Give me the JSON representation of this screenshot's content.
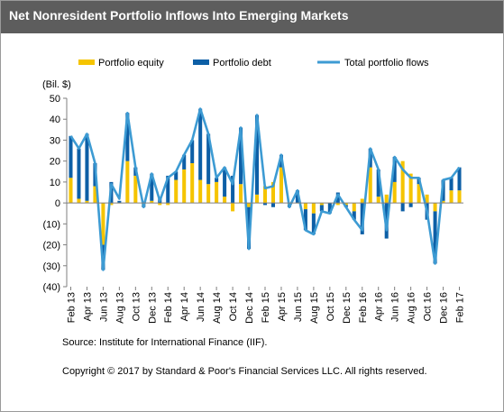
{
  "chart_data": {
    "type": "bar",
    "title": "Net Nonresident Portfolio Inflows Into Emerging Markets",
    "unit_label": "(Bil. $)",
    "ylim": [
      -40,
      50
    ],
    "yticks": [
      "50",
      "40",
      "30",
      "20",
      "10",
      "0",
      "(10)",
      "(20)",
      "(30)",
      "(40)"
    ],
    "ytick_values": [
      50,
      40,
      30,
      20,
      10,
      0,
      -10,
      -20,
      -30,
      -40
    ],
    "categories": [
      "Feb 13",
      "Mar 13",
      "Apr 13",
      "May 13",
      "Jun 13",
      "Jul 13",
      "Aug 13",
      "Sep 13",
      "Oct 13",
      "Nov 13",
      "Dec 13",
      "Jan 14",
      "Feb 14",
      "Mar 14",
      "Apr 14",
      "May 14",
      "Jun 14",
      "Jul 14",
      "Aug 14",
      "Sep 14",
      "Oct 14",
      "Nov 14",
      "Dec 14",
      "Jan 15",
      "Feb 15",
      "Mar 15",
      "Apr 15",
      "May 15",
      "Jun 15",
      "Jul 15",
      "Aug 15",
      "Sep 15",
      "Oct 15",
      "Nov 15",
      "Dec 15",
      "Jan 16",
      "Feb 16",
      "Mar 16",
      "Apr 16",
      "May 16",
      "Jun 16",
      "Jul 16",
      "Aug 16",
      "Sep 16",
      "Oct 16",
      "Nov 16",
      "Dec 16",
      "Jan 17",
      "Feb 17"
    ],
    "tick_labels": [
      "Feb 13",
      "Apr 13",
      "Jun 13",
      "Aug 13",
      "Oct 13",
      "Dec 13",
      "Feb 14",
      "Apr 14",
      "Jun 14",
      "Aug 14",
      "Oct 14",
      "Dec 14",
      "Feb 15",
      "Apr 15",
      "Jun 15",
      "Aug 15",
      "Oct 15",
      "Dec 15",
      "Feb 16",
      "Apr 16",
      "Jun 16",
      "Aug 16",
      "Oct 16",
      "Dec 16",
      "Feb 17"
    ],
    "legend_position": "top",
    "series": [
      {
        "name": "Portfolio equity",
        "kind": "bar",
        "color": "#f5c400",
        "values": [
          12,
          2,
          1,
          8,
          -20,
          -1,
          0,
          20,
          13,
          -1,
          1,
          -1,
          -1,
          11,
          16,
          19,
          11,
          9,
          10,
          3,
          -4,
          9,
          -2,
          4,
          8,
          10,
          17,
          -1,
          0,
          -3,
          -5,
          -1,
          0,
          -1,
          -1,
          -4,
          2,
          17,
          3,
          4,
          10,
          20,
          14,
          9,
          4,
          -4,
          1,
          6,
          6
        ]
      },
      {
        "name": "Portfolio debt",
        "kind": "bar",
        "color": "#0d5fa6",
        "values": [
          20,
          24,
          32,
          11,
          -12,
          10,
          1,
          23,
          4,
          -1,
          13,
          2,
          13,
          4,
          7,
          11,
          34,
          24,
          2,
          14,
          13,
          27,
          -20,
          38,
          -1,
          -2,
          6,
          -1,
          6,
          -10,
          -10,
          -3,
          -5,
          5,
          -1,
          -4,
          -15,
          9,
          13,
          -17,
          12,
          -4,
          -2,
          3,
          -8,
          -25,
          10,
          6,
          11
        ]
      },
      {
        "name": "Total portfolio flows",
        "kind": "line",
        "color": "#3d9bd3",
        "values": [
          32,
          26,
          33,
          19,
          -32,
          9,
          2,
          43,
          17,
          -2,
          14,
          1,
          12,
          15,
          23,
          30,
          45,
          33,
          12,
          17,
          9,
          36,
          -22,
          42,
          7,
          8,
          23,
          -2,
          6,
          -13,
          -15,
          -4,
          -5,
          4,
          -2,
          -8,
          -13,
          26,
          16,
          -13,
          22,
          16,
          12,
          12,
          -4,
          -29,
          11,
          12,
          17
        ]
      }
    ]
  },
  "notes": {
    "source": "Source: Institute for International Finance (IIF).",
    "copyright": "Copyright © 2017 by Standard & Poor's Financial Services LLC. All rights reserved."
  }
}
